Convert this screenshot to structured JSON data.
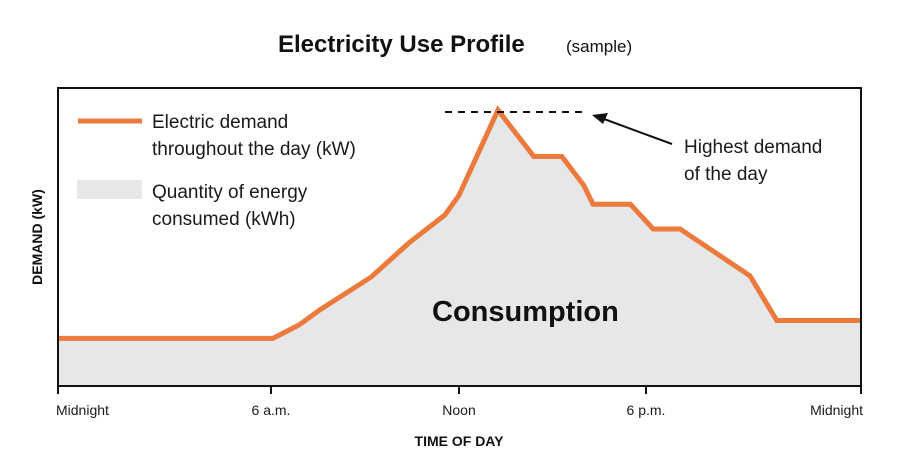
{
  "chart_data": {
    "type": "area",
    "title": "Electricity Use Profile",
    "subtitle": "(sample)",
    "xlabel": "TIME OF DAY",
    "ylabel": "DEMAND (kW)",
    "x_ticks": [
      {
        "hour": 0,
        "label": "Midnight"
      },
      {
        "hour": 6,
        "label": "6 a.m."
      },
      {
        "hour": 12,
        "label": "Noon"
      },
      {
        "hour": 18,
        "label": "6 p.m."
      },
      {
        "hour": 24,
        "label": "Midnight"
      }
    ],
    "xlim": [
      0,
      24
    ],
    "ylim": [
      0,
      100
    ],
    "y_units_note": "relative",
    "grid": false,
    "legend_position": "top-left",
    "legend": [
      {
        "label_line1": "Electric demand",
        "label_line2": "throughout the day (kW)",
        "kind": "line"
      },
      {
        "label_line1": "Quantity of energy",
        "label_line2": "consumed (kWh)",
        "kind": "area"
      }
    ],
    "series": [
      {
        "x": [
          0,
          6.06,
          6.9,
          7.55,
          9.2,
          10.4,
          11.55,
          12,
          13.25,
          14.4,
          15.3,
          16.0,
          16.3,
          17.5,
          18.2,
          18.95,
          20.9,
          21.65,
          24
        ],
        "y": [
          16,
          16,
          20.5,
          25.5,
          36.6,
          48,
          57.4,
          64,
          92.6,
          77,
          77,
          67.4,
          61,
          61,
          52.7,
          52.7,
          37,
          22,
          22
        ]
      }
    ],
    "annotations": {
      "peak_line1": "Highest demand",
      "peak_line2": "of the day",
      "area_label": "Consumption"
    },
    "colors": {
      "line": "#ec7a3d",
      "area": "#e6e7e8",
      "text": "#111111"
    }
  }
}
